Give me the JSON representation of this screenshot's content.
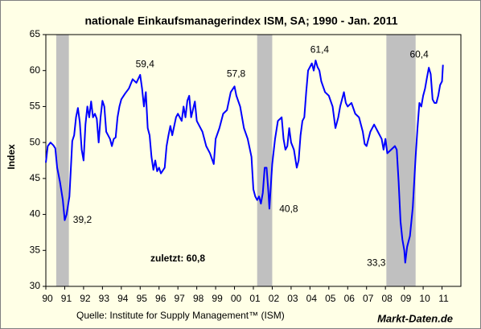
{
  "chart_data": {
    "type": "line",
    "title": "nationale Einkaufsmanagerindex ISM, SA; 1990 - Jan. 2011",
    "y_label": "Index",
    "source": "Quelle: Institute for Supply Management™ (ISM)",
    "brand": "Markt-Daten.de",
    "note": "zuletzt: 60,8",
    "xlim": [
      1990,
      2012
    ],
    "ylim": [
      30,
      65
    ],
    "yticks": [
      30,
      35,
      40,
      45,
      50,
      55,
      60,
      65
    ],
    "xticks": [
      {
        "value": 1990,
        "label": "90"
      },
      {
        "value": 1991,
        "label": "91"
      },
      {
        "value": 1992,
        "label": "92"
      },
      {
        "value": 1993,
        "label": "93"
      },
      {
        "value": 1994,
        "label": "94"
      },
      {
        "value": 1995,
        "label": "95"
      },
      {
        "value": 1996,
        "label": "96"
      },
      {
        "value": 1997,
        "label": "97"
      },
      {
        "value": 1998,
        "label": "98"
      },
      {
        "value": 1999,
        "label": "99"
      },
      {
        "value": 2000,
        "label": "00"
      },
      {
        "value": 2001,
        "label": "01"
      },
      {
        "value": 2002,
        "label": "02"
      },
      {
        "value": 2003,
        "label": "03"
      },
      {
        "value": 2004,
        "label": "04"
      },
      {
        "value": 2005,
        "label": "05"
      },
      {
        "value": 2006,
        "label": "06"
      },
      {
        "value": 2007,
        "label": "07"
      },
      {
        "value": 2008,
        "label": "08"
      },
      {
        "value": 2009,
        "label": "09"
      },
      {
        "value": 2010,
        "label": "10"
      },
      {
        "value": 2011,
        "label": "11"
      }
    ],
    "shaded_periods": [
      [
        1990.55,
        1991.22
      ],
      [
        2001.2,
        2002.0
      ],
      [
        2008.05,
        2009.6
      ]
    ],
    "shade_color": "#c0c0c0",
    "x": [
      1990.0,
      1990.1,
      1990.25,
      1990.4,
      1990.5,
      1990.6,
      1990.75,
      1990.9,
      1991.0,
      1991.1,
      1991.25,
      1991.4,
      1991.5,
      1991.6,
      1991.7,
      1991.8,
      1991.9,
      1992.0,
      1992.1,
      1992.2,
      1992.3,
      1992.4,
      1992.5,
      1992.6,
      1992.7,
      1992.8,
      1992.9,
      1993.0,
      1993.1,
      1993.2,
      1993.3,
      1993.4,
      1993.5,
      1993.6,
      1993.7,
      1993.8,
      1993.9,
      1994.0,
      1994.2,
      1994.4,
      1994.6,
      1994.8,
      1995.0,
      1995.1,
      1995.2,
      1995.3,
      1995.4,
      1995.5,
      1995.6,
      1995.7,
      1995.8,
      1995.9,
      1996.0,
      1996.1,
      1996.3,
      1996.4,
      1996.5,
      1996.6,
      1996.7,
      1996.9,
      1997.0,
      1997.2,
      1997.3,
      1997.4,
      1997.5,
      1997.6,
      1997.7,
      1997.9,
      1998.0,
      1998.1,
      1998.3,
      1998.5,
      1998.7,
      1998.9,
      1999.0,
      1999.2,
      1999.4,
      1999.6,
      1999.8,
      2000.0,
      2000.1,
      2000.3,
      2000.5,
      2000.7,
      2000.9,
      2001.0,
      2001.1,
      2001.2,
      2001.3,
      2001.4,
      2001.5,
      2001.6,
      2001.7,
      2001.8,
      2001.85,
      2001.95,
      2002.0,
      2002.15,
      2002.3,
      2002.5,
      2002.6,
      2002.7,
      2002.8,
      2002.9,
      2003.0,
      2003.15,
      2003.3,
      2003.4,
      2003.5,
      2003.6,
      2003.7,
      2003.8,
      2003.9,
      2004.0,
      2004.1,
      2004.2,
      2004.3,
      2004.4,
      2004.5,
      2004.6,
      2004.8,
      2005.0,
      2005.2,
      2005.35,
      2005.5,
      2005.6,
      2005.7,
      2005.8,
      2005.9,
      2006.0,
      2006.2,
      2006.4,
      2006.6,
      2006.8,
      2006.9,
      2007.0,
      2007.2,
      2007.4,
      2007.6,
      2007.8,
      2007.9,
      2008.0,
      2008.1,
      2008.3,
      2008.5,
      2008.6,
      2008.7,
      2008.8,
      2008.9,
      2009.0,
      2009.05,
      2009.15,
      2009.3,
      2009.45,
      2009.6,
      2009.7,
      2009.8,
      2009.9,
      2010.0,
      2010.1,
      2010.2,
      2010.3,
      2010.4,
      2010.5,
      2010.6,
      2010.7,
      2010.8,
      2010.9,
      2011.0,
      2011.05
    ],
    "series": [
      {
        "name": "ISM",
        "color": "#0000ff",
        "values": [
          47.2,
          49.5,
          50.0,
          49.6,
          49.2,
          46.5,
          44.5,
          42.0,
          39.2,
          40.0,
          42.5,
          50.2,
          51.0,
          53.5,
          54.8,
          52.8,
          49.0,
          47.5,
          52.5,
          55.0,
          53.5,
          55.7,
          53.5,
          54.0,
          53.3,
          50.0,
          53.5,
          55.8,
          55.0,
          51.5,
          51.0,
          50.5,
          49.5,
          50.5,
          50.7,
          53.5,
          55.0,
          56.0,
          56.8,
          57.5,
          58.8,
          58.3,
          59.4,
          57.5,
          55.0,
          57.0,
          52.0,
          51.0,
          48.0,
          46.2,
          47.5,
          46.0,
          46.5,
          45.7,
          46.5,
          49.5,
          51.0,
          52.3,
          51.0,
          53.5,
          54.0,
          53.0,
          55.0,
          53.5,
          55.8,
          56.5,
          53.5,
          55.7,
          53.0,
          52.5,
          51.5,
          49.5,
          48.5,
          47.0,
          50.5,
          52.0,
          54.0,
          54.5,
          57.0,
          57.8,
          56.5,
          55.0,
          52.0,
          50.5,
          48.0,
          43.5,
          42.5,
          42.0,
          42.5,
          41.5,
          43.0,
          46.5,
          46.5,
          43.0,
          40.8,
          45.0,
          47.0,
          50.5,
          53.0,
          53.5,
          50.5,
          49.0,
          49.5,
          52.0,
          50.0,
          49.0,
          46.5,
          47.5,
          51.0,
          53.0,
          53.5,
          57.0,
          60.0,
          60.5,
          61.0,
          60.0,
          61.4,
          60.5,
          60.0,
          58.5,
          57.0,
          56.5,
          55.0,
          52.0,
          53.5,
          55.0,
          56.0,
          57.0,
          55.5,
          55.0,
          55.5,
          54.0,
          53.5,
          51.5,
          49.8,
          49.5,
          51.5,
          52.5,
          51.5,
          50.5,
          49.0,
          50.5,
          48.5,
          49.0,
          49.5,
          49.0,
          44.5,
          39.0,
          36.5,
          35.0,
          33.3,
          35.5,
          37.0,
          41.0,
          48.0,
          52.0,
          55.5,
          55.0,
          56.5,
          57.5,
          59.0,
          60.4,
          59.5,
          56.0,
          55.5,
          55.5,
          56.5,
          58.0,
          58.5,
          60.8
        ]
      }
    ],
    "annotations": [
      {
        "text": "59,4",
        "x": 1995.0,
        "y": 59.4
      },
      {
        "text": "57,8",
        "x": 2000.0,
        "y": 57.8
      },
      {
        "text": "61,4",
        "x": 2004.3,
        "y": 61.4
      },
      {
        "text": "60,4",
        "x": 2010.3,
        "y": 60.4
      },
      {
        "text": "39,2",
        "x": 1991.0,
        "y": 39.2
      },
      {
        "text": "40,8",
        "x": 2001.85,
        "y": 40.8
      },
      {
        "text": "33,3",
        "x": 2009.05,
        "y": 33.3
      }
    ]
  }
}
